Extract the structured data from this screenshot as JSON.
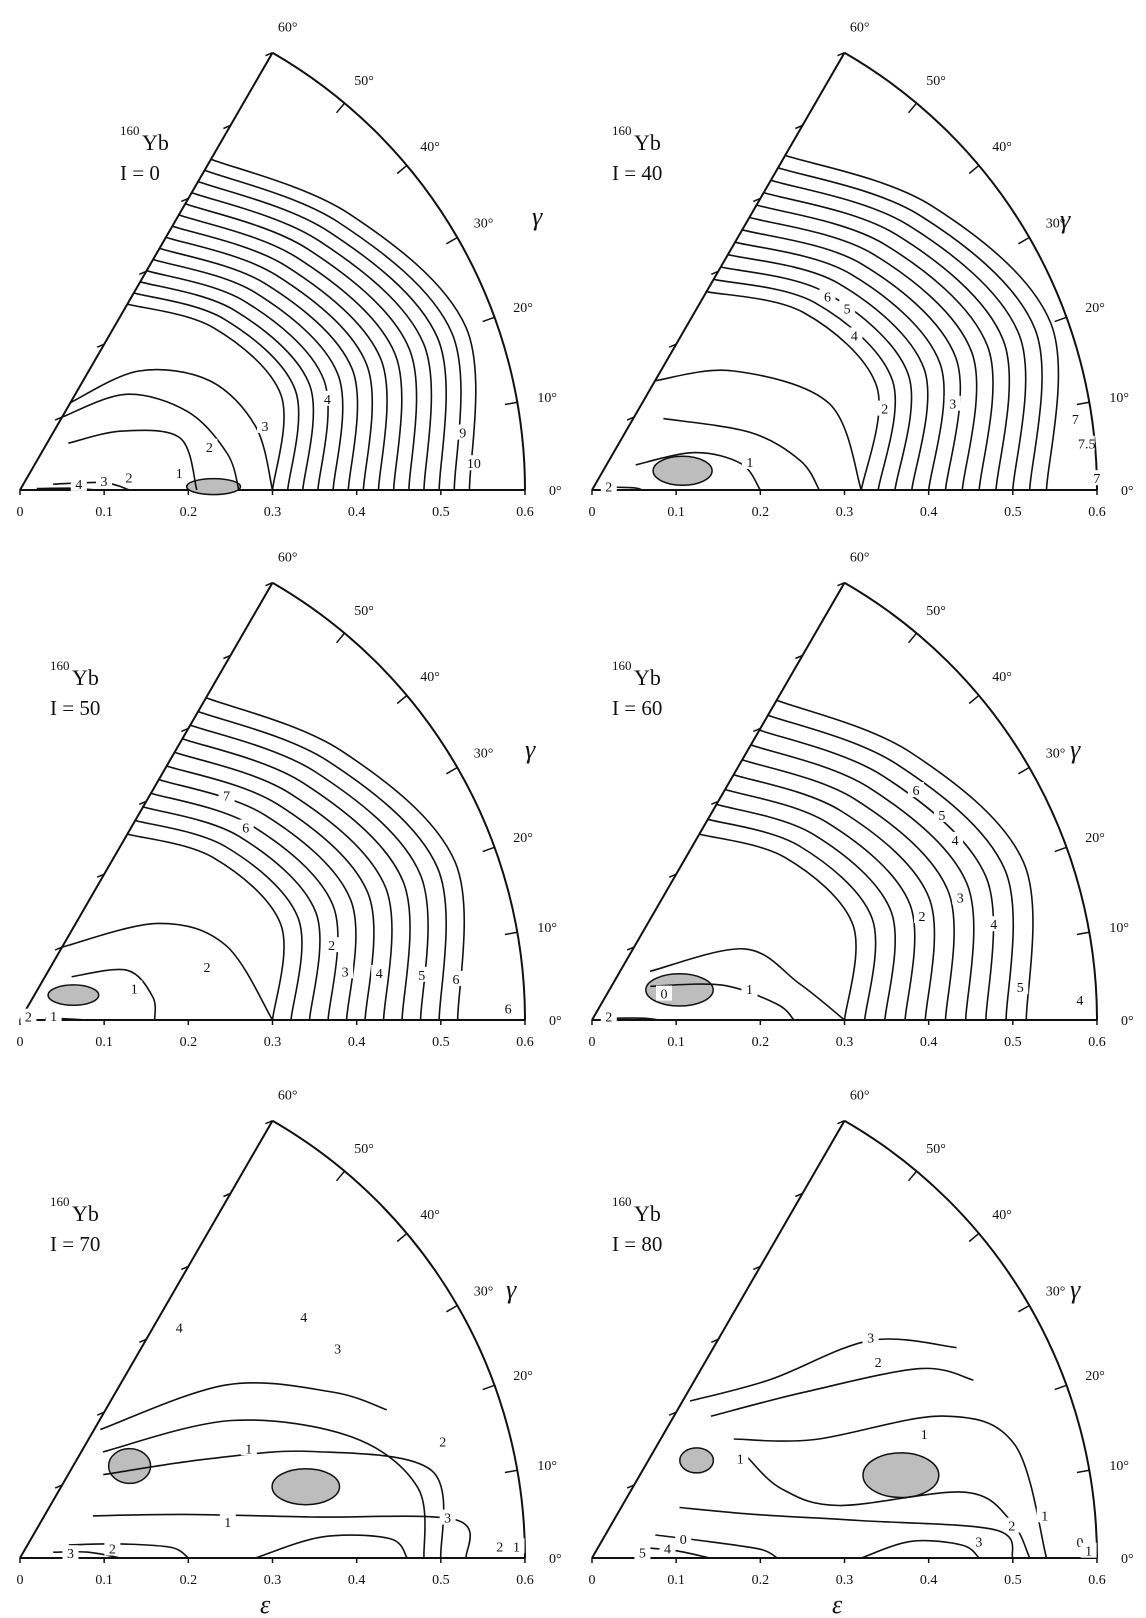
{
  "colors": {
    "ink": "#111111",
    "shade": "#bdbdbd",
    "paper": "#ffffff"
  },
  "axis_labels": {
    "epsilon": "ε",
    "gamma": "γ"
  },
  "chart_data": [
    {
      "type": "contour",
      "nucleus": "Yb",
      "mass_number": "160",
      "spin_label": "I = 0",
      "xlabel": "",
      "ylabel": "γ",
      "ylim": [
        0,
        60
      ],
      "xticks": [
        "0",
        "0.1",
        "0.2",
        "0.3",
        "0.4",
        "0.5",
        "0.6"
      ],
      "gamma_ticks": [
        "0°",
        "10°",
        "20°",
        "30°",
        "40°",
        "50°",
        "60°"
      ],
      "contour_labels": [
        {
          "text": "1",
          "eps": 0.19,
          "gamma": 5
        },
        {
          "text": "2",
          "eps": 0.23,
          "gamma": 12
        },
        {
          "text": "3",
          "eps": 0.3,
          "gamma": 14
        },
        {
          "text": "4",
          "eps": 0.38,
          "gamma": 16
        },
        {
          "text": "9",
          "eps": 0.53,
          "gamma": 7
        },
        {
          "text": "10",
          "eps": 0.54,
          "gamma": 3
        },
        {
          "text": "2",
          "eps": 0.13,
          "gamma": 5
        },
        {
          "text": "3",
          "eps": 0.1,
          "gamma": 4
        },
        {
          "text": "4",
          "eps": 0.07,
          "gamma": 3
        }
      ],
      "minima": [
        {
          "eps": 0.23,
          "gamma": 1,
          "r_eps": 0.032,
          "r_gamma": 1.2
        }
      ]
    },
    {
      "type": "contour",
      "nucleus": "Yb",
      "mass_number": "160",
      "spin_label": "I = 40",
      "xlabel": "",
      "ylabel": "γ",
      "ylim": [
        0,
        60
      ],
      "xticks": [
        "0",
        "0.1",
        "0.2",
        "0.3",
        "0.4",
        "0.5",
        "0.6"
      ],
      "gamma_ticks": [
        "0°",
        "10°",
        "20°",
        "30°",
        "40°",
        "50°",
        "60°"
      ],
      "contour_labels": [
        {
          "text": "1",
          "eps": 0.19,
          "gamma": 9
        },
        {
          "text": "2",
          "eps": 0.36,
          "gamma": 15
        },
        {
          "text": "3",
          "eps": 0.44,
          "gamma": 13
        },
        {
          "text": "4",
          "eps": 0.36,
          "gamma": 30
        },
        {
          "text": "5",
          "eps": 0.37,
          "gamma": 35
        },
        {
          "text": "6",
          "eps": 0.36,
          "gamma": 39
        },
        {
          "text": "7",
          "eps": 0.58,
          "gamma": 8
        },
        {
          "text": "7.5",
          "eps": 0.59,
          "gamma": 5
        },
        {
          "text": "7",
          "eps": 0.6,
          "gamma": 1
        },
        {
          "text": "2",
          "eps": 0.02,
          "gamma": 2
        }
      ],
      "minima": [
        {
          "eps": 0.11,
          "gamma": 12,
          "r_eps": 0.035,
          "r_gamma": 9
        }
      ]
    },
    {
      "type": "contour",
      "nucleus": "Yb",
      "mass_number": "160",
      "spin_label": "I = 50",
      "xlabel": "",
      "ylabel": "γ",
      "ylim": [
        0,
        60
      ],
      "xticks": [
        "0",
        "0.1",
        "0.2",
        "0.3",
        "0.4",
        "0.5",
        "0.6"
      ],
      "gamma_ticks": [
        "0°",
        "10°",
        "20°",
        "30°",
        "40°",
        "50°",
        "60°"
      ],
      "contour_labels": [
        {
          "text": "1",
          "eps": 0.14,
          "gamma": 14
        },
        {
          "text": "2",
          "eps": 0.23,
          "gamma": 15
        },
        {
          "text": "2",
          "eps": 0.38,
          "gamma": 13
        },
        {
          "text": "3",
          "eps": 0.39,
          "gamma": 8
        },
        {
          "text": "4",
          "eps": 0.43,
          "gamma": 7
        },
        {
          "text": "5",
          "eps": 0.48,
          "gamma": 6
        },
        {
          "text": "6",
          "eps": 0.52,
          "gamma": 5
        },
        {
          "text": "6",
          "eps": 0.58,
          "gamma": 1
        },
        {
          "text": "6",
          "eps": 0.35,
          "gamma": 40
        },
        {
          "text": "7",
          "eps": 0.36,
          "gamma": 47
        },
        {
          "text": "1",
          "eps": 0.04,
          "gamma": 2
        },
        {
          "text": "2",
          "eps": 0.01,
          "gamma": 2
        }
      ],
      "minima": [
        {
          "eps": 0.07,
          "gamma": 25,
          "r_eps": 0.03,
          "r_gamma": 10
        }
      ]
    },
    {
      "type": "contour",
      "nucleus": "Yb",
      "mass_number": "160",
      "spin_label": "I = 60",
      "xlabel": "",
      "ylabel": "γ",
      "ylim": [
        0,
        60
      ],
      "xticks": [
        "0",
        "0.1",
        "0.2",
        "0.3",
        "0.4",
        "0.5",
        "0.6"
      ],
      "gamma_ticks": [
        "0°",
        "10°",
        "20°",
        "30°",
        "40°",
        "50°",
        "60°"
      ],
      "contour_labels": [
        {
          "text": "0",
          "eps": 0.09,
          "gamma": 18
        },
        {
          "text": "1",
          "eps": 0.19,
          "gamma": 10
        },
        {
          "text": "2",
          "eps": 0.41,
          "gamma": 17
        },
        {
          "text": "3",
          "eps": 0.46,
          "gamma": 18
        },
        {
          "text": "4",
          "eps": 0.49,
          "gamma": 13
        },
        {
          "text": "4",
          "eps": 0.48,
          "gamma": 26
        },
        {
          "text": "5",
          "eps": 0.48,
          "gamma": 30
        },
        {
          "text": "6",
          "eps": 0.47,
          "gamma": 35
        },
        {
          "text": "5",
          "eps": 0.51,
          "gamma": 4
        },
        {
          "text": "4",
          "eps": 0.58,
          "gamma": 2
        },
        {
          "text": "2",
          "eps": 0.02,
          "gamma": 2
        }
      ],
      "minima": [
        {
          "eps": 0.11,
          "gamma": 19,
          "r_eps": 0.04,
          "r_gamma": 10
        }
      ]
    },
    {
      "type": "contour",
      "nucleus": "Yb",
      "mass_number": "160",
      "spin_label": "I = 70",
      "xlabel": "ε",
      "ylabel": "γ",
      "ylim": [
        0,
        60
      ],
      "xticks": [
        "0",
        "0.1",
        "0.2",
        "0.3",
        "0.4",
        "0.5",
        "0.6"
      ],
      "gamma_ticks": [
        "0°",
        "10°",
        "20°",
        "30°",
        "40°",
        "50°",
        "60°"
      ],
      "contour_labels": [
        {
          "text": "1",
          "eps": 0.3,
          "gamma": 25
        },
        {
          "text": "1",
          "eps": 0.25,
          "gamma": 9
        },
        {
          "text": "2",
          "eps": 0.52,
          "gamma": 15
        },
        {
          "text": "3",
          "eps": 0.45,
          "gamma": 33
        },
        {
          "text": "4",
          "eps": 0.44,
          "gamma": 40
        },
        {
          "text": "4",
          "eps": 0.33,
          "gamma": 55
        },
        {
          "text": "3",
          "eps": 0.51,
          "gamma": 5
        },
        {
          "text": "2",
          "eps": 0.11,
          "gamma": 4
        },
        {
          "text": "3",
          "eps": 0.06,
          "gamma": 2
        },
        {
          "text": "2",
          "eps": 0.57,
          "gamma": 1
        },
        {
          "text": "1",
          "eps": 0.59,
          "gamma": 1
        }
      ],
      "minima": [
        {
          "eps": 0.35,
          "gamma": 14,
          "r_eps": 0.04,
          "r_gamma": 3.5
        },
        {
          "eps": 0.17,
          "gamma": 40,
          "r_eps": 0.025,
          "r_gamma": 7
        }
      ]
    },
    {
      "type": "contour",
      "nucleus": "Yb",
      "mass_number": "160",
      "spin_label": "I = 80",
      "xlabel": "ε",
      "ylabel": "γ",
      "ylim": [
        0,
        60
      ],
      "xticks": [
        "0",
        "0.1",
        "0.2",
        "0.3",
        "0.4",
        "0.5",
        "0.6"
      ],
      "gamma_ticks": [
        "0°",
        "10°",
        "20°",
        "30°",
        "40°",
        "50°",
        "60°"
      ],
      "contour_labels": [
        {
          "text": "1",
          "eps": 0.42,
          "gamma": 20
        },
        {
          "text": "2",
          "eps": 0.41,
          "gamma": 34
        },
        {
          "text": "3",
          "eps": 0.42,
          "gamma": 38
        },
        {
          "text": "1",
          "eps": 0.21,
          "gamma": 33
        },
        {
          "text": "1",
          "eps": 0.54,
          "gamma": 5
        },
        {
          "text": "2",
          "eps": 0.5,
          "gamma": 4
        },
        {
          "text": "3",
          "eps": 0.46,
          "gamma": 2
        },
        {
          "text": "0",
          "eps": 0.11,
          "gamma": 10
        },
        {
          "text": "4",
          "eps": 0.09,
          "gamma": 5
        },
        {
          "text": "5",
          "eps": 0.06,
          "gamma": 3
        },
        {
          "text": "0",
          "eps": 0.58,
          "gamma": 1.5
        },
        {
          "text": "1",
          "eps": 0.59,
          "gamma": 0.5
        }
      ],
      "minima": [
        {
          "eps": 0.38,
          "gamma": 15,
          "r_eps": 0.045,
          "r_gamma": 4
        },
        {
          "eps": 0.17,
          "gamma": 43,
          "r_eps": 0.02,
          "r_gamma": 5
        }
      ]
    }
  ]
}
